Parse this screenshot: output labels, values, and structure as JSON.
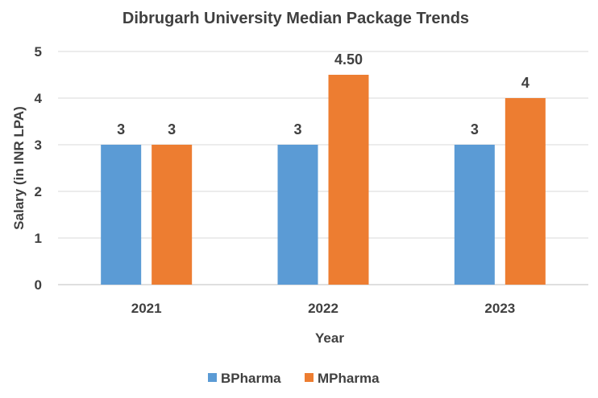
{
  "chart_data": {
    "type": "bar",
    "title": "Dibrugarh University Median Package Trends",
    "xlabel": "Year",
    "ylabel": "Salary (in INR LPA)",
    "categories": [
      "2021",
      "2022",
      "2023"
    ],
    "series": [
      {
        "name": "BPharma",
        "values": [
          3,
          3,
          3
        ],
        "labels": [
          "3",
          "3",
          "3"
        ],
        "color": "#5B9BD5"
      },
      {
        "name": "MPharma",
        "values": [
          3,
          4.5,
          4
        ],
        "labels": [
          "3",
          "4.50",
          "4"
        ],
        "color": "#ED7D31"
      }
    ],
    "ylim": [
      0,
      5
    ],
    "yticks": [
      "0",
      "1",
      "2",
      "3",
      "4",
      "5"
    ],
    "grid": true,
    "legend": "bottom"
  }
}
